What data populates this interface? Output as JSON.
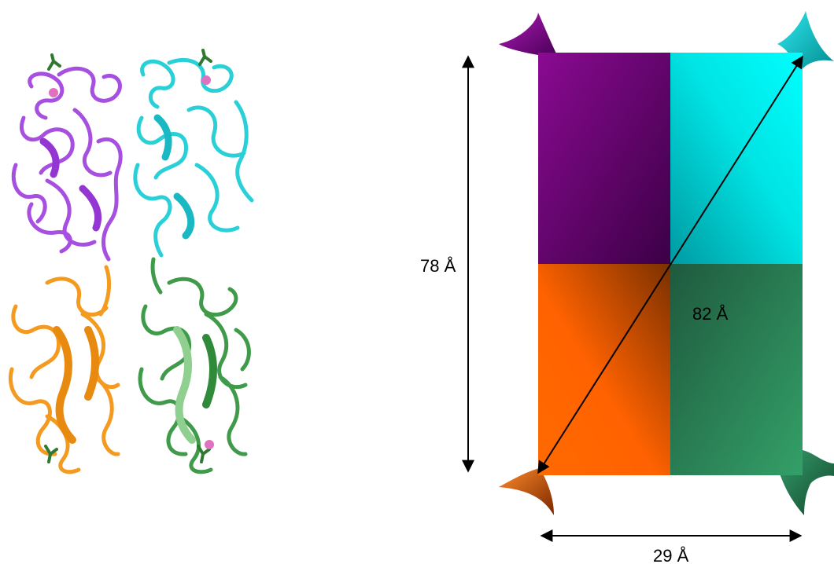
{
  "labels": {
    "height": "78 Å",
    "diagonal": "82 Å",
    "width": "29 Å"
  },
  "colors": {
    "purple": "#7b0c84",
    "cyan": "#00e4e4",
    "orange": "#ff6a00",
    "green": "#2e9a5e",
    "ribbon_purple": "#a64fe0",
    "ribbon_cyan": "#2ad0d8",
    "ribbon_orange": "#f39a1f",
    "ribbon_green": "#3f9a4a",
    "ligand": "#2f7a30",
    "ion": "#e070c0"
  },
  "ribbon_structure": {
    "subunits": [
      "purple",
      "cyan",
      "orange",
      "green"
    ]
  }
}
